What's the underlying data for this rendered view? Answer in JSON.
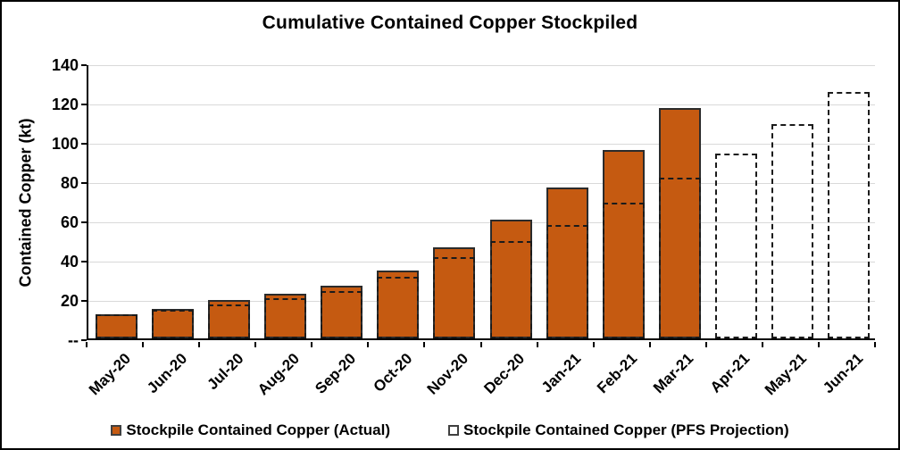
{
  "chart": {
    "title": "Cumulative Contained Copper Stockpiled",
    "y_axis_title": "Contained Copper (kt)"
  },
  "legend": {
    "actual_label": "Stockpile Contained Copper (Actual)",
    "projection_label": "Stockpile Contained Copper (PFS Projection)"
  },
  "colors": {
    "actual_fill": "#C55A11",
    "bar_border": "#2B2B2B",
    "dashed_line": "#1B1B1B",
    "gridline": "#D9D9D9",
    "axis": "#000000"
  },
  "chart_data": {
    "type": "bar",
    "title": "Cumulative Contained Copper Stockpiled",
    "xlabel": "",
    "ylabel": "Contained Copper (kt)",
    "ylim": [
      0,
      140
    ],
    "ytick_interval": 20,
    "ytick_labels": [
      "--",
      "20",
      "40",
      "60",
      "80",
      "100",
      "120",
      "140"
    ],
    "grid": true,
    "legend_position": "bottom",
    "categories": [
      "May-20",
      "Jun-20",
      "Jul-20",
      "Aug-20",
      "Sep-20",
      "Oct-20",
      "Nov-20",
      "Dec-20",
      "Jan-21",
      "Feb-21",
      "Mar-21",
      "Apr-21",
      "May-21",
      "Jun-21"
    ],
    "series": [
      {
        "name": "Stockpile Contained Copper (Actual)",
        "style": "solid-bar",
        "color": "#C55A11",
        "values": [
          12.1,
          14.8,
          19.4,
          22.9,
          26.6,
          34.7,
          46.5,
          60.6,
          77.0,
          95.9,
          117.5,
          null,
          null,
          null
        ]
      },
      {
        "name": "Stockpile Contained Copper (PFS Projection)",
        "style": "dashed-outline-bar",
        "color": "#1B1B1B",
        "values": [
          12.2,
          14.6,
          17.4,
          20.5,
          24.0,
          31.2,
          41.4,
          49.7,
          57.7,
          69.0,
          81.8,
          93.9,
          109.3,
          125.5
        ]
      }
    ]
  }
}
